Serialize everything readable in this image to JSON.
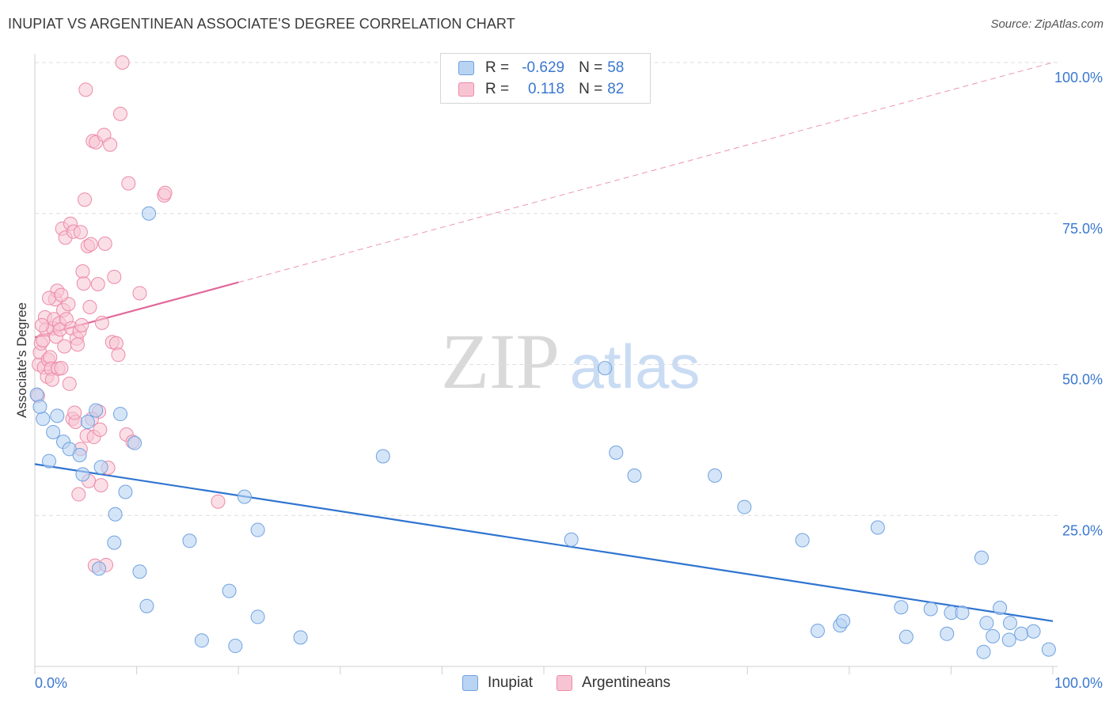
{
  "header": {
    "title": "INUPIAT VS ARGENTINEAN ASSOCIATE'S DEGREE CORRELATION CHART",
    "source": "Source: ZipAtlas.com"
  },
  "watermark": {
    "zip": "ZIP",
    "atlas": "atlas"
  },
  "legend_top": {
    "rows": [
      {
        "r_label": "R = ",
        "r_value": "-0.629",
        "n_label": "N = ",
        "n_value": "58"
      },
      {
        "r_label": "R = ",
        "r_value": "0.118",
        "n_label": "N = ",
        "n_value": "82"
      }
    ]
  },
  "legend_bottom": {
    "series1": "Inupiat",
    "series2": "Argentineans"
  },
  "colors": {
    "blue_fill": "#b9d3f3",
    "blue_stroke": "#6fa2e0",
    "blue_line": "#2f74d0",
    "pink_fill": "#f8c4d3",
    "pink_stroke": "#ec8aa8",
    "pink_line": "#e2679a",
    "axis_text": "#3a78d0",
    "grid": "#dedede"
  },
  "chart_data": {
    "type": "scatter",
    "title": "INUPIAT VS ARGENTINEAN ASSOCIATE'S DEGREE CORRELATION CHART",
    "ylabel": "Associate's Degree",
    "xlabel": "",
    "xlim": [
      0,
      100
    ],
    "ylim": [
      0,
      100
    ],
    "x_tick_labels": [
      "0.0%",
      "100.0%"
    ],
    "y_ticks": [
      25,
      50,
      75,
      100
    ],
    "y_tick_labels": [
      "25.0%",
      "50.0%",
      "75.0%",
      "100.0%"
    ],
    "grid": true,
    "legend": "top-center",
    "series": [
      {
        "name": "Inupiat",
        "r": -0.629,
        "n": 58,
        "trend": {
          "x": [
            0,
            100
          ],
          "y": [
            33.5,
            7.5
          ],
          "x_solid_end": 100
        },
        "points": [
          [
            0.2,
            45.0
          ],
          [
            0.8,
            41.0
          ],
          [
            1.4,
            34.0
          ],
          [
            1.8,
            38.8
          ],
          [
            2.2,
            41.5
          ],
          [
            2.8,
            37.2
          ],
          [
            3.4,
            36.0
          ],
          [
            4.4,
            35.0
          ],
          [
            4.7,
            31.8
          ],
          [
            5.2,
            40.5
          ],
          [
            6.0,
            42.4
          ],
          [
            6.5,
            33.0
          ],
          [
            7.8,
            20.5
          ],
          [
            7.9,
            25.2
          ],
          [
            6.3,
            16.2
          ],
          [
            8.4,
            41.8
          ],
          [
            8.9,
            28.9
          ],
          [
            9.8,
            37.0
          ],
          [
            10.3,
            15.7
          ],
          [
            11.0,
            10.0
          ],
          [
            11.2,
            75.0
          ],
          [
            15.2,
            20.8
          ],
          [
            16.4,
            4.3
          ],
          [
            19.1,
            12.5
          ],
          [
            19.7,
            3.4
          ],
          [
            20.6,
            28.1
          ],
          [
            21.9,
            8.2
          ],
          [
            21.9,
            22.6
          ],
          [
            26.1,
            4.8
          ],
          [
            34.2,
            34.8
          ],
          [
            52.7,
            21.0
          ],
          [
            56.0,
            49.4
          ],
          [
            57.1,
            35.4
          ],
          [
            58.9,
            31.6
          ],
          [
            66.8,
            31.6
          ],
          [
            69.7,
            26.4
          ],
          [
            75.4,
            20.9
          ],
          [
            76.9,
            5.9
          ],
          [
            79.1,
            6.8
          ],
          [
            79.4,
            7.5
          ],
          [
            82.8,
            23.0
          ],
          [
            85.1,
            9.8
          ],
          [
            85.6,
            4.9
          ],
          [
            88.0,
            9.5
          ],
          [
            89.6,
            5.4
          ],
          [
            90.0,
            8.9
          ],
          [
            91.1,
            8.9
          ],
          [
            93.0,
            18.0
          ],
          [
            93.2,
            2.4
          ],
          [
            93.5,
            7.2
          ],
          [
            94.1,
            5.0
          ],
          [
            94.8,
            9.7
          ],
          [
            95.7,
            4.4
          ],
          [
            95.8,
            7.2
          ],
          [
            96.9,
            5.4
          ],
          [
            98.1,
            5.8
          ],
          [
            99.6,
            2.8
          ],
          [
            0.5,
            43.0
          ]
        ]
      },
      {
        "name": "Argentineans",
        "r": 0.118,
        "n": 82,
        "trend": {
          "x": [
            0,
            100
          ],
          "y": [
            54.5,
            100
          ],
          "x_solid_end": 20
        },
        "points": [
          [
            0.3,
            44.8
          ],
          [
            0.4,
            50.0
          ],
          [
            0.5,
            52.0
          ],
          [
            0.6,
            53.5
          ],
          [
            0.8,
            54.0
          ],
          [
            0.9,
            49.5
          ],
          [
            1.0,
            57.8
          ],
          [
            1.1,
            55.8
          ],
          [
            1.2,
            48.0
          ],
          [
            1.3,
            50.8
          ],
          [
            1.5,
            51.2
          ],
          [
            1.6,
            49.3
          ],
          [
            1.8,
            56.0
          ],
          [
            1.9,
            57.5
          ],
          [
            2.0,
            60.8
          ],
          [
            2.1,
            54.6
          ],
          [
            2.2,
            62.2
          ],
          [
            2.3,
            49.3
          ],
          [
            2.4,
            56.8
          ],
          [
            2.5,
            55.8
          ],
          [
            2.6,
            49.4
          ],
          [
            2.7,
            72.5
          ],
          [
            2.8,
            59.0
          ],
          [
            2.9,
            53.0
          ],
          [
            3.0,
            71.0
          ],
          [
            3.1,
            57.5
          ],
          [
            3.3,
            60.0
          ],
          [
            3.4,
            46.8
          ],
          [
            3.5,
            73.3
          ],
          [
            3.6,
            56.0
          ],
          [
            3.7,
            41.0
          ],
          [
            3.8,
            72.0
          ],
          [
            4.0,
            40.5
          ],
          [
            4.1,
            54.3
          ],
          [
            4.2,
            53.3
          ],
          [
            4.3,
            28.5
          ],
          [
            4.4,
            55.5
          ],
          [
            4.5,
            71.9
          ],
          [
            4.6,
            56.5
          ],
          [
            4.7,
            65.4
          ],
          [
            4.8,
            63.4
          ],
          [
            4.9,
            77.3
          ],
          [
            5.0,
            95.5
          ],
          [
            5.1,
            38.2
          ],
          [
            5.2,
            69.6
          ],
          [
            5.3,
            30.7
          ],
          [
            5.4,
            59.5
          ],
          [
            5.5,
            69.9
          ],
          [
            5.7,
            87.0
          ],
          [
            5.8,
            38.0
          ],
          [
            5.9,
            16.7
          ],
          [
            6.0,
            86.8
          ],
          [
            6.2,
            63.3
          ],
          [
            6.3,
            42.2
          ],
          [
            6.4,
            39.2
          ],
          [
            6.5,
            30.0
          ],
          [
            6.6,
            56.9
          ],
          [
            6.8,
            88.0
          ],
          [
            6.9,
            70.0
          ],
          [
            7.0,
            16.8
          ],
          [
            7.2,
            32.9
          ],
          [
            7.4,
            86.4
          ],
          [
            7.6,
            53.7
          ],
          [
            7.8,
            64.5
          ],
          [
            8.0,
            53.5
          ],
          [
            8.2,
            51.6
          ],
          [
            8.4,
            91.5
          ],
          [
            8.6,
            100.0
          ],
          [
            9.0,
            38.4
          ],
          [
            9.2,
            80.0
          ],
          [
            9.6,
            37.2
          ],
          [
            10.3,
            61.8
          ],
          [
            12.7,
            78.0
          ],
          [
            12.8,
            78.4
          ],
          [
            18.0,
            27.3
          ],
          [
            1.4,
            61.0
          ],
          [
            2.6,
            61.5
          ],
          [
            3.9,
            42.0
          ],
          [
            0.7,
            56.5
          ],
          [
            1.7,
            47.5
          ],
          [
            4.5,
            36.0
          ],
          [
            5.6,
            41.0
          ]
        ]
      }
    ]
  }
}
